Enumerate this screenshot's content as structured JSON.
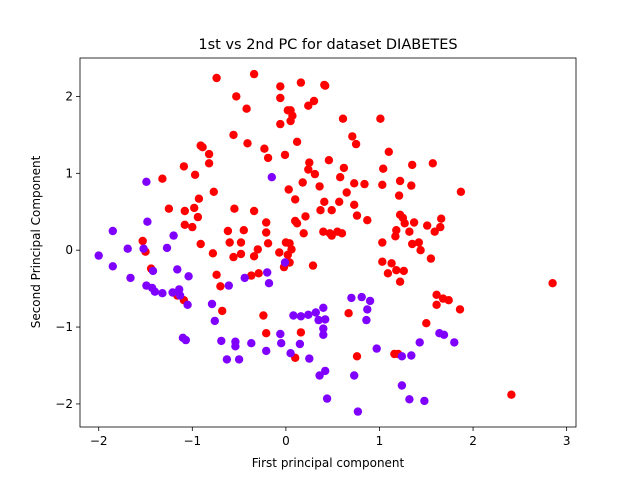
{
  "chart_data": {
    "type": "scatter",
    "title": "1st vs 2nd PC for dataset DIABETES",
    "xlabel": "First principal component",
    "ylabel": "Second Principal Component",
    "xlim": [
      -2.2,
      3.1
    ],
    "ylim": [
      -2.3,
      2.5
    ],
    "x_ticks": [
      -2,
      -1,
      0,
      1,
      2,
      3
    ],
    "y_ticks": [
      -2,
      -1,
      0,
      1,
      2
    ],
    "x_tick_labels": [
      "−2",
      "−1",
      "0",
      "1",
      "2",
      "3"
    ],
    "y_tick_labels": [
      "−2",
      "−1",
      "0",
      "1",
      "2"
    ],
    "grid": false,
    "legend": false,
    "colors": {
      "class_a": "#ff0000",
      "class_b": "#8000ff"
    },
    "series": [
      {
        "color_key": "class_a",
        "points": [
          [
            -0.74,
            2.24
          ],
          [
            -0.34,
            2.29
          ],
          [
            0.41,
            2.15
          ],
          [
            0.42,
            2.14
          ],
          [
            0.16,
            2.18
          ],
          [
            -0.06,
            2.13
          ],
          [
            -0.53,
            2.0
          ],
          [
            -0.06,
            1.98
          ],
          [
            0.3,
            1.94
          ],
          [
            0.24,
            1.88
          ],
          [
            1.01,
            1.71
          ],
          [
            0.61,
            1.71
          ],
          [
            -0.42,
            1.84
          ],
          [
            0.05,
            1.82
          ],
          [
            0.02,
            1.82
          ],
          [
            0.07,
            1.75
          ],
          [
            0.05,
            1.68
          ],
          [
            -0.06,
            1.64
          ],
          [
            0.12,
            1.41
          ],
          [
            0.71,
            1.48
          ],
          [
            0.75,
            1.38
          ],
          [
            1.1,
            1.28
          ],
          [
            -0.56,
            1.5
          ],
          [
            -0.91,
            1.36
          ],
          [
            -0.89,
            1.34
          ],
          [
            -0.41,
            1.39
          ],
          [
            -0.23,
            1.32
          ],
          [
            -0.82,
            1.25
          ],
          [
            -0.19,
            1.2
          ],
          [
            -0.01,
            1.24
          ],
          [
            0.25,
            1.14
          ],
          [
            0.46,
            1.17
          ],
          [
            0.62,
            1.07
          ],
          [
            1.04,
            1.06
          ],
          [
            1.35,
            1.11
          ],
          [
            1.57,
            1.13
          ],
          [
            -1.09,
            1.09
          ],
          [
            -0.82,
            1.13
          ],
          [
            -1.32,
            0.93
          ],
          [
            -0.97,
            0.98
          ],
          [
            0.24,
            1.05
          ],
          [
            0.31,
            0.99
          ],
          [
            0.58,
            0.95
          ],
          [
            0.18,
            0.88
          ],
          [
            0.36,
            0.83
          ],
          [
            1.22,
            0.9
          ],
          [
            1.34,
            0.84
          ],
          [
            0.73,
            0.87
          ],
          [
            0.84,
            0.86
          ],
          [
            0.03,
            0.79
          ],
          [
            0.65,
            0.75
          ],
          [
            1.03,
            0.85
          ],
          [
            1.21,
            0.71
          ],
          [
            1.87,
            0.76
          ],
          [
            -0.77,
            0.76
          ],
          [
            -0.93,
            0.67
          ],
          [
            -0.98,
            0.55
          ],
          [
            -1.08,
            0.51
          ],
          [
            -1.25,
            0.54
          ],
          [
            -0.55,
            0.54
          ],
          [
            0.1,
            0.66
          ],
          [
            0.41,
            0.63
          ],
          [
            0.57,
            0.63
          ],
          [
            0.73,
            0.59
          ],
          [
            0.37,
            0.52
          ],
          [
            0.49,
            0.52
          ],
          [
            0.21,
            0.44
          ],
          [
            0.1,
            0.38
          ],
          [
            0.76,
            0.45
          ],
          [
            0.87,
            0.39
          ],
          [
            1.22,
            0.46
          ],
          [
            1.25,
            0.42
          ],
          [
            1.37,
            0.36
          ],
          [
            1.66,
            0.41
          ],
          [
            -0.94,
            0.43
          ],
          [
            -1.08,
            0.33
          ],
          [
            -1.0,
            0.3
          ],
          [
            -0.34,
            0.51
          ],
          [
            -0.21,
            0.36
          ],
          [
            -0.21,
            0.23
          ],
          [
            0.12,
            0.35
          ],
          [
            0.4,
            0.24
          ],
          [
            0.49,
            0.19
          ],
          [
            0.6,
            0.22
          ],
          [
            1.18,
            0.26
          ],
          [
            1.32,
            0.24
          ],
          [
            1.17,
            0.18
          ],
          [
            1.35,
            0.08
          ],
          [
            1.42,
            0.1
          ],
          [
            1.27,
            0.35
          ],
          [
            1.51,
            0.32
          ],
          [
            1.59,
            0.24
          ],
          [
            1.65,
            0.3
          ],
          [
            -0.45,
            0.26
          ],
          [
            -0.62,
            0.25
          ],
          [
            0.47,
            0.22
          ],
          [
            0.55,
            0.24
          ],
          [
            -0.91,
            0.08
          ],
          [
            -0.6,
            0.1
          ],
          [
            -0.48,
            0.1
          ],
          [
            -0.3,
            0.01
          ],
          [
            -0.19,
            0.09
          ],
          [
            0.0,
            0.1
          ],
          [
            0.04,
            0.09
          ],
          [
            0.06,
            0.01
          ],
          [
            0.19,
            0.22
          ],
          [
            1.03,
            0.1
          ],
          [
            1.44,
            0.0
          ],
          [
            -1.53,
            0.12
          ],
          [
            -1.5,
            -0.02
          ],
          [
            -0.78,
            -0.04
          ],
          [
            -0.56,
            -0.09
          ],
          [
            -0.48,
            -0.05
          ],
          [
            -0.34,
            -0.08
          ],
          [
            -0.07,
            -0.03
          ],
          [
            0.02,
            -0.06
          ],
          [
            -0.02,
            -0.22
          ],
          [
            0.29,
            -0.2
          ],
          [
            1.18,
            -0.26
          ],
          [
            1.26,
            -0.27
          ],
          [
            1.09,
            -0.3
          ],
          [
            1.03,
            -0.15
          ],
          [
            1.13,
            -0.17
          ],
          [
            1.55,
            -0.11
          ],
          [
            -1.44,
            -0.24
          ],
          [
            -0.74,
            -0.32
          ],
          [
            -0.7,
            -0.47
          ],
          [
            -0.37,
            -0.33
          ],
          [
            -0.29,
            -0.3
          ],
          [
            0.04,
            -0.16
          ],
          [
            1.22,
            -0.41
          ],
          [
            -1.16,
            -0.59
          ],
          [
            -1.09,
            -0.65
          ],
          [
            -0.68,
            -0.79
          ],
          [
            -0.24,
            -0.85
          ],
          [
            -0.21,
            -1.08
          ],
          [
            0.1,
            -1.4
          ],
          [
            0.16,
            -1.07
          ],
          [
            0.67,
            -0.82
          ],
          [
            0.76,
            -1.38
          ],
          [
            1.16,
            -1.35
          ],
          [
            1.2,
            -1.35
          ],
          [
            1.5,
            -0.95
          ],
          [
            1.61,
            -0.58
          ],
          [
            1.61,
            -0.71
          ],
          [
            1.68,
            -0.63
          ],
          [
            1.74,
            -0.65
          ],
          [
            1.86,
            -0.77
          ],
          [
            2.41,
            -1.88
          ],
          [
            2.85,
            -0.43
          ]
        ]
      },
      {
        "color_key": "class_b",
        "points": [
          [
            -1.49,
            0.89
          ],
          [
            -0.15,
            0.95
          ],
          [
            -1.85,
            0.25
          ],
          [
            -1.48,
            0.37
          ],
          [
            -1.2,
            0.19
          ],
          [
            -1.69,
            0.02
          ],
          [
            -1.52,
            0.02
          ],
          [
            -1.27,
            0.03
          ],
          [
            -2.0,
            -0.07
          ],
          [
            -1.85,
            -0.21
          ],
          [
            -1.66,
            -0.36
          ],
          [
            -1.42,
            -0.27
          ],
          [
            -1.16,
            -0.25
          ],
          [
            -1.04,
            -0.34
          ],
          [
            -0.44,
            -0.36
          ],
          [
            -0.2,
            -0.29
          ],
          [
            -0.18,
            -0.43
          ],
          [
            -0.01,
            -0.16
          ],
          [
            -1.49,
            -0.46
          ],
          [
            -1.43,
            -0.49
          ],
          [
            -1.4,
            -0.54
          ],
          [
            -1.32,
            -0.56
          ],
          [
            -1.21,
            -0.55
          ],
          [
            -1.14,
            -0.51
          ],
          [
            -1.13,
            -0.59
          ],
          [
            -1.05,
            -0.71
          ],
          [
            -0.79,
            -0.7
          ],
          [
            -0.61,
            -0.46
          ],
          [
            -0.76,
            -0.92
          ],
          [
            -1.1,
            -1.14
          ],
          [
            -1.07,
            -1.17
          ],
          [
            -0.69,
            -1.18
          ],
          [
            -0.54,
            -1.19
          ],
          [
            -0.54,
            -1.25
          ],
          [
            -0.37,
            -1.21
          ],
          [
            -0.06,
            -1.09
          ],
          [
            0.08,
            -0.85
          ],
          [
            0.16,
            -0.86
          ],
          [
            0.24,
            -0.84
          ],
          [
            0.32,
            -0.81
          ],
          [
            0.4,
            -0.75
          ],
          [
            0.35,
            -0.91
          ],
          [
            0.42,
            -0.9
          ],
          [
            0.4,
            -1.02
          ],
          [
            0.4,
            -1.1
          ],
          [
            0.7,
            -0.62
          ],
          [
            0.81,
            -0.61
          ],
          [
            0.9,
            -0.66
          ],
          [
            0.87,
            -0.77
          ],
          [
            0.86,
            -0.91
          ],
          [
            1.24,
            -1.38
          ],
          [
            1.34,
            -1.37
          ],
          [
            1.43,
            -1.2
          ],
          [
            1.64,
            -1.08
          ],
          [
            1.69,
            -1.1
          ],
          [
            1.8,
            -1.2
          ],
          [
            -0.63,
            -1.42
          ],
          [
            -0.5,
            -1.42
          ],
          [
            -0.21,
            -1.31
          ],
          [
            -0.05,
            -1.21
          ],
          [
            0.15,
            -1.22
          ],
          [
            0.25,
            -1.41
          ],
          [
            0.36,
            -1.63
          ],
          [
            0.42,
            -1.57
          ],
          [
            0.73,
            -1.63
          ],
          [
            0.44,
            -1.93
          ],
          [
            0.77,
            -2.1
          ],
          [
            0.97,
            -1.28
          ],
          [
            1.24,
            -1.76
          ],
          [
            1.32,
            -1.94
          ],
          [
            1.48,
            -1.96
          ],
          [
            0.05,
            -1.34
          ]
        ]
      }
    ]
  }
}
